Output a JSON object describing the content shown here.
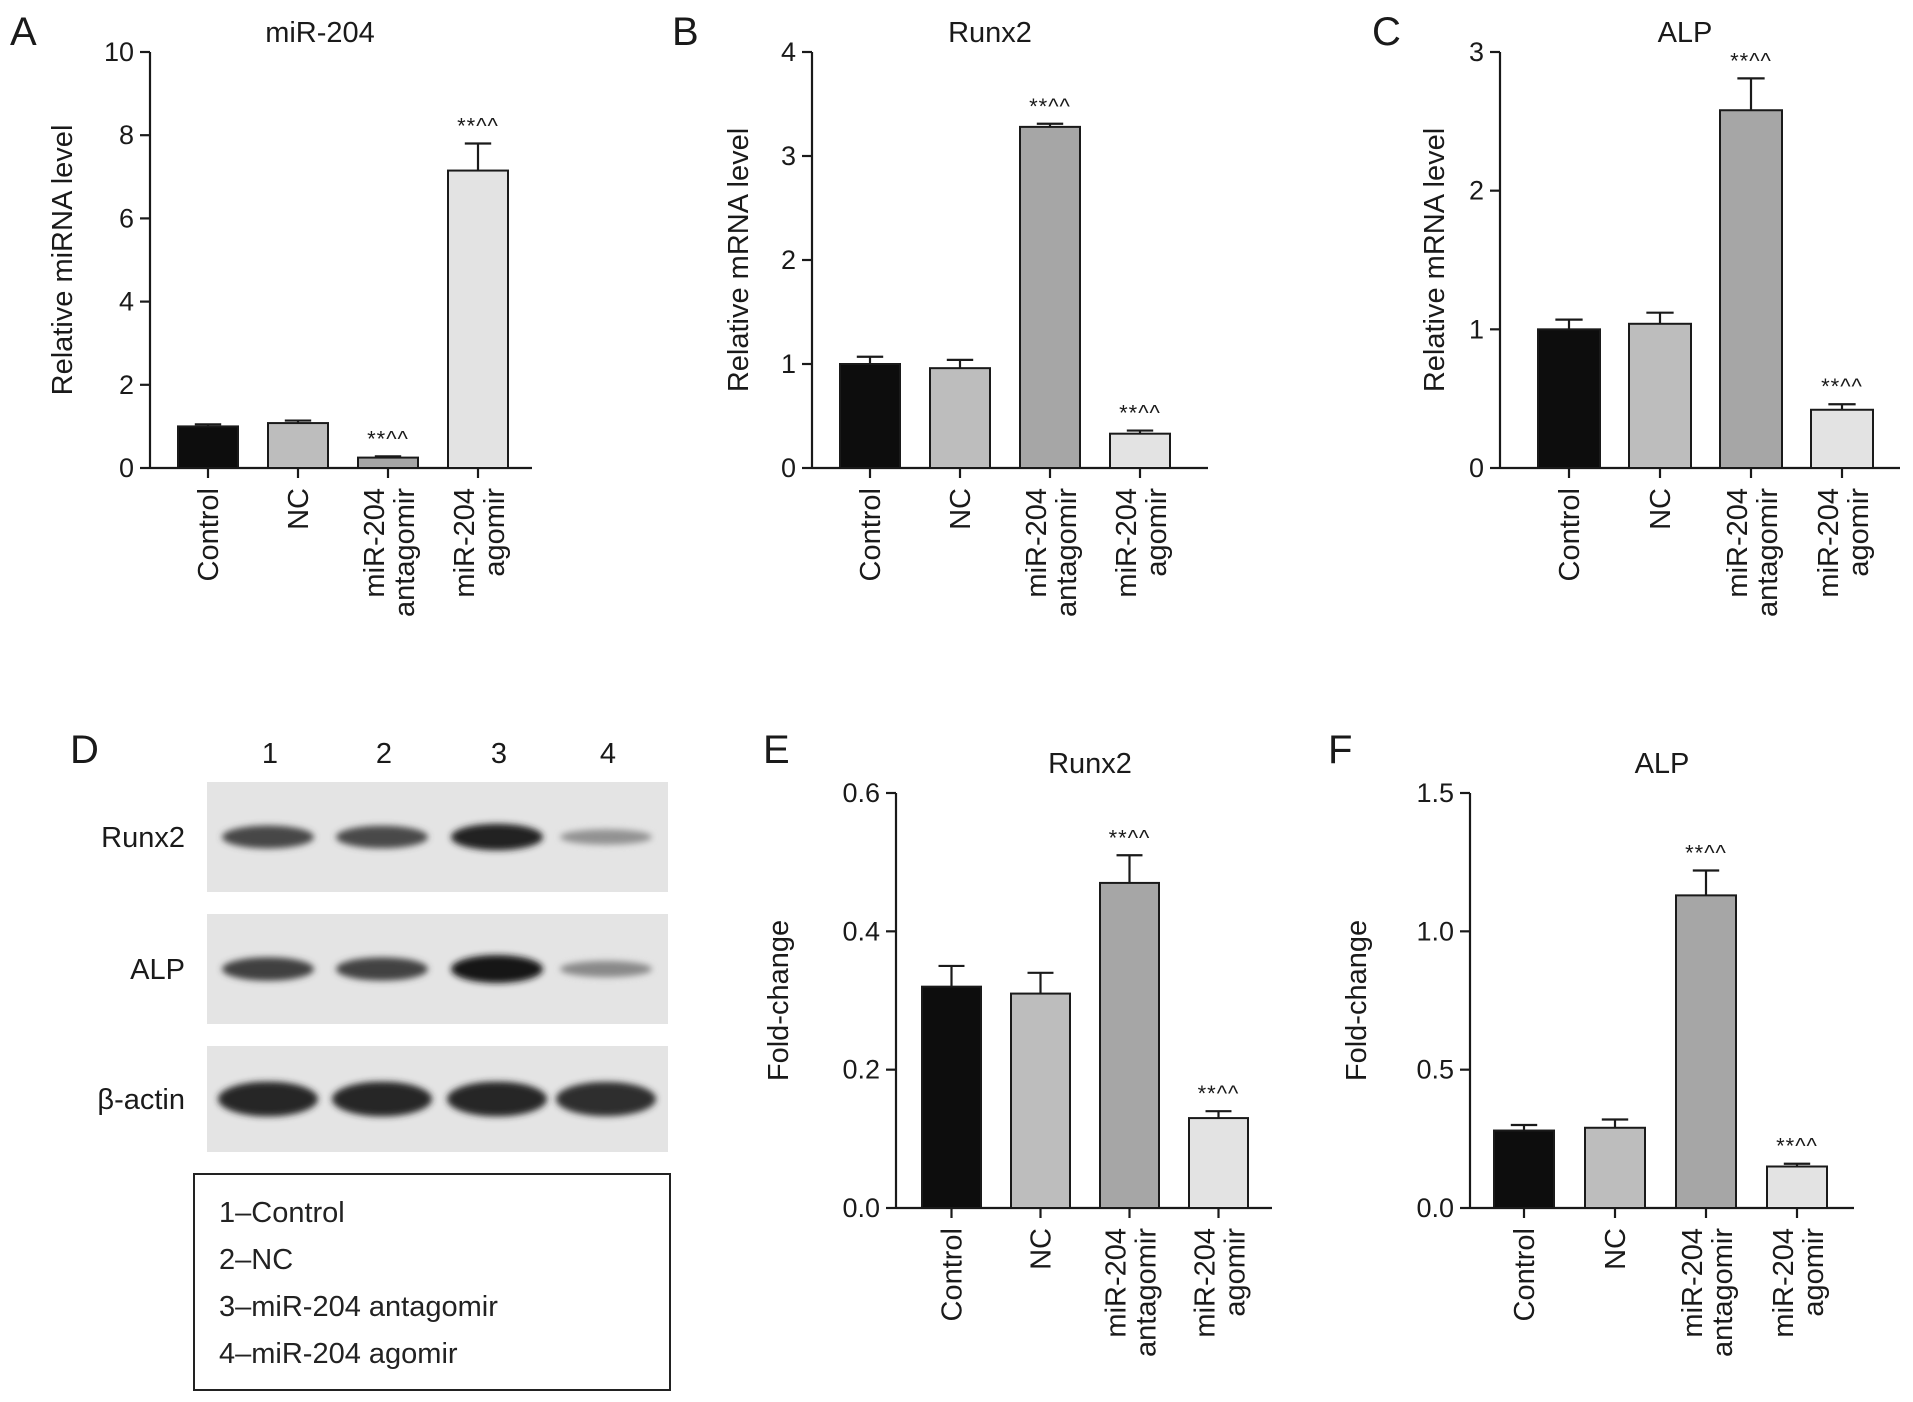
{
  "chart_data": [
    {
      "type": "bar",
      "panel": "A",
      "title": "miR-204",
      "ylabel": "Relative miRNA level",
      "ylim": [
        0,
        10
      ],
      "yticks": [
        0,
        2,
        4,
        6,
        8,
        10
      ],
      "categories": [
        "Control",
        "NC",
        "miR-204 antagomir",
        "miR-204 agomir"
      ],
      "values": [
        1.0,
        1.08,
        0.25,
        7.15
      ],
      "errors": [
        0.05,
        0.06,
        0.03,
        0.65
      ],
      "annotations": [
        "",
        "",
        "**^^",
        "**^^"
      ],
      "colors": [
        "#0d0d0d",
        "#bdbdbd",
        "#a6a6a6",
        "#e3e3e3"
      ]
    },
    {
      "type": "bar",
      "panel": "B",
      "title": "Runx2",
      "ylabel": "Relative mRNA level",
      "ylim": [
        0,
        4
      ],
      "yticks": [
        0,
        1,
        2,
        3,
        4
      ],
      "categories": [
        "Control",
        "NC",
        "miR-204 antagomir",
        "miR-204 agomir"
      ],
      "values": [
        1.0,
        0.96,
        3.28,
        0.33
      ],
      "errors": [
        0.07,
        0.08,
        0.03,
        0.03
      ],
      "annotations": [
        "",
        "",
        "**^^",
        "**^^"
      ],
      "colors": [
        "#0d0d0d",
        "#bdbdbd",
        "#a6a6a6",
        "#e3e3e3"
      ]
    },
    {
      "type": "bar",
      "panel": "C",
      "title": "ALP",
      "ylabel": "Relative mRNA level",
      "ylim": [
        0,
        3
      ],
      "yticks": [
        0,
        1,
        2,
        3
      ],
      "categories": [
        "Control",
        "NC",
        "miR-204 antagomir",
        "miR-204 agomir"
      ],
      "values": [
        1.0,
        1.04,
        2.58,
        0.42
      ],
      "errors": [
        0.07,
        0.08,
        0.23,
        0.04
      ],
      "annotations": [
        "",
        "",
        "**^^",
        "**^^"
      ],
      "colors": [
        "#0d0d0d",
        "#bdbdbd",
        "#a6a6a6",
        "#e3e3e3"
      ]
    },
    {
      "type": "bar",
      "panel": "E",
      "title": "Runx2",
      "ylabel": "Fold-change",
      "ylim": [
        0,
        0.6
      ],
      "yticks": [
        "0.0",
        "0.2",
        "0.4",
        "0.6"
      ],
      "categories": [
        "Control",
        "NC",
        "miR-204 antagomir",
        "miR-204 agomir"
      ],
      "values": [
        0.32,
        0.31,
        0.47,
        0.13
      ],
      "errors": [
        0.03,
        0.03,
        0.04,
        0.01
      ],
      "annotations": [
        "",
        "",
        "**^^",
        "**^^"
      ],
      "colors": [
        "#0d0d0d",
        "#bdbdbd",
        "#a6a6a6",
        "#e3e3e3"
      ]
    },
    {
      "type": "bar",
      "panel": "F",
      "title": "ALP",
      "ylabel": "Fold-change",
      "ylim": [
        0,
        1.5
      ],
      "yticks": [
        "0.0",
        "0.5",
        "1.0",
        "1.5"
      ],
      "categories": [
        "Control",
        "NC",
        "miR-204 antagomir",
        "miR-204 agomir"
      ],
      "values": [
        0.28,
        0.29,
        1.13,
        0.15
      ],
      "errors": [
        0.02,
        0.03,
        0.09,
        0.01
      ],
      "annotations": [
        "",
        "",
        "**^^",
        "**^^"
      ],
      "colors": [
        "#0d0d0d",
        "#bdbdbd",
        "#a6a6a6",
        "#e3e3e3"
      ]
    }
  ],
  "blot": {
    "panel": "D",
    "lanes": [
      "1",
      "2",
      "3",
      "4"
    ],
    "rows": [
      {
        "label": "Runx2",
        "intensity": [
          0.72,
          0.7,
          0.92,
          0.3
        ]
      },
      {
        "label": "ALP",
        "intensity": [
          0.75,
          0.74,
          1.0,
          0.35
        ]
      },
      {
        "label": "β-actin",
        "intensity": [
          0.9,
          0.9,
          0.9,
          0.86
        ]
      }
    ],
    "legend": [
      "1–Control",
      "2–NC",
      "3–miR-204 antagomir",
      "4–miR-204 agomir"
    ]
  }
}
